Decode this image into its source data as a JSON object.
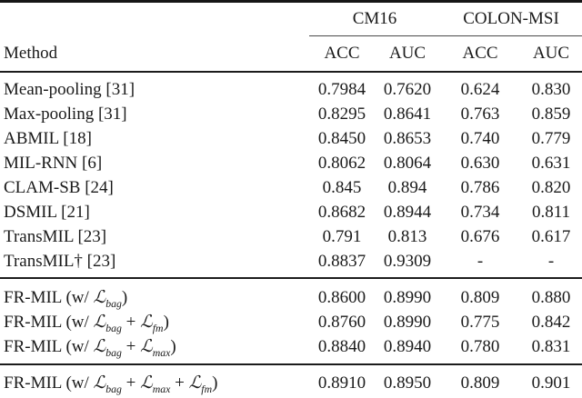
{
  "table": {
    "col_groups": [
      {
        "label": "CM16"
      },
      {
        "label": "COLON-MSI"
      }
    ],
    "method_header": "Method",
    "sub_headers": [
      "ACC",
      "AUC",
      "ACC",
      "AUC"
    ],
    "sections": [
      {
        "rows": [
          {
            "method": [
              {
                "text": "Mean-pooling [31]"
              }
            ],
            "values": [
              "0.7984",
              "0.7620",
              "0.624",
              "0.830"
            ]
          },
          {
            "method": [
              {
                "text": "Max-pooling [31]"
              }
            ],
            "values": [
              "0.8295",
              "0.8641",
              "0.763",
              "0.859"
            ]
          },
          {
            "method": [
              {
                "text": "ABMIL [18]"
              }
            ],
            "values": [
              "0.8450",
              "0.8653",
              "0.740",
              "0.779"
            ]
          },
          {
            "method": [
              {
                "text": "MIL-RNN [6]"
              }
            ],
            "values": [
              "0.8062",
              "0.8064",
              "0.630",
              "0.631"
            ]
          },
          {
            "method": [
              {
                "text": "CLAM-SB [24]"
              }
            ],
            "values": [
              "0.845",
              "0.894",
              "0.786",
              "0.820"
            ]
          },
          {
            "method": [
              {
                "text": "DSMIL [21]"
              }
            ],
            "values": [
              "0.8682",
              "0.8944",
              "0.734",
              "0.811"
            ]
          },
          {
            "method": [
              {
                "text": "TransMIL [23]"
              }
            ],
            "values": [
              "0.791",
              "0.813",
              "0.676",
              "0.617"
            ]
          },
          {
            "method": [
              {
                "text": "TransMIL† [23]"
              }
            ],
            "values": [
              "0.8837",
              "0.9309",
              "-",
              "-"
            ]
          }
        ]
      },
      {
        "rows": [
          {
            "method": [
              {
                "text": "FR-MIL (w/ "
              },
              {
                "text": "ℒ",
                "style": "script"
              },
              {
                "text": "bag",
                "style": "sub"
              },
              {
                "text": ")"
              }
            ],
            "values": [
              "0.8600",
              "0.8990",
              "0.809",
              "0.880"
            ]
          },
          {
            "method": [
              {
                "text": "FR-MIL (w/ "
              },
              {
                "text": "ℒ",
                "style": "script"
              },
              {
                "text": "bag",
                "style": "sub"
              },
              {
                "text": " + "
              },
              {
                "text": "ℒ",
                "style": "script"
              },
              {
                "text": "fm",
                "style": "sub"
              },
              {
                "text": ")"
              }
            ],
            "values": [
              "0.8760",
              "0.8990",
              "0.775",
              "0.842"
            ]
          },
          {
            "method": [
              {
                "text": "FR-MIL (w/ "
              },
              {
                "text": "ℒ",
                "style": "script"
              },
              {
                "text": "bag",
                "style": "sub"
              },
              {
                "text": " + "
              },
              {
                "text": "ℒ",
                "style": "script"
              },
              {
                "text": "max",
                "style": "sub"
              },
              {
                "text": ")"
              }
            ],
            "values": [
              "0.8840",
              "0.8940",
              "0.780",
              "0.831"
            ]
          }
        ]
      },
      {
        "rows": [
          {
            "method": [
              {
                "text": "FR-MIL (w/ "
              },
              {
                "text": "ℒ",
                "style": "script"
              },
              {
                "text": "bag",
                "style": "sub"
              },
              {
                "text": " + "
              },
              {
                "text": "ℒ",
                "style": "script"
              },
              {
                "text": "max",
                "style": "sub"
              },
              {
                "text": " + "
              },
              {
                "text": "ℒ",
                "style": "script"
              },
              {
                "text": "fm",
                "style": "sub"
              },
              {
                "text": ")"
              }
            ],
            "values": [
              "0.8910",
              "0.8950",
              "0.809",
              "0.901"
            ]
          }
        ]
      }
    ]
  }
}
